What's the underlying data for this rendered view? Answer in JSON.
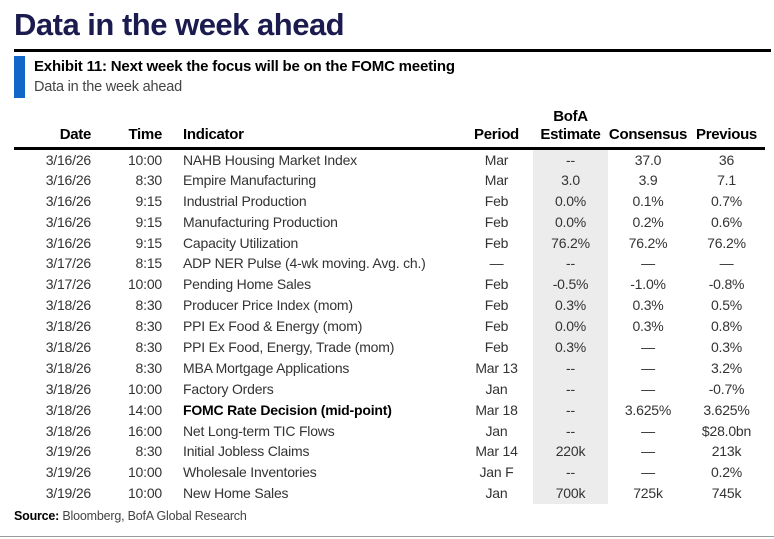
{
  "page_title": "Data in the week ahead",
  "exhibit": {
    "title": "Exhibit 11: Next week the focus will be on the FOMC meeting",
    "subtitle": "Data in the week ahead"
  },
  "table": {
    "headers": {
      "date": "Date",
      "time": "Time",
      "indicator": "Indicator",
      "period": "Period",
      "bofa_line1": "BofA",
      "bofa_line2": "Estimate",
      "consensus": "Consensus",
      "previous": "Previous"
    },
    "rows": [
      {
        "date": "3/16/26",
        "time": "10:00",
        "indicator": "NAHB Housing Market Index",
        "period": "Mar",
        "bofa": "--",
        "consensus": "37.0",
        "previous": "36",
        "emphasis": false
      },
      {
        "date": "3/16/26",
        "time": "8:30",
        "indicator": "Empire Manufacturing",
        "period": "Mar",
        "bofa": "3.0",
        "consensus": "3.9",
        "previous": "7.1",
        "emphasis": false
      },
      {
        "date": "3/16/26",
        "time": "9:15",
        "indicator": "Industrial Production",
        "period": "Feb",
        "bofa": "0.0%",
        "consensus": "0.1%",
        "previous": "0.7%",
        "emphasis": false
      },
      {
        "date": "3/16/26",
        "time": "9:15",
        "indicator": "Manufacturing Production",
        "period": "Feb",
        "bofa": "0.0%",
        "consensus": "0.2%",
        "previous": "0.6%",
        "emphasis": false
      },
      {
        "date": "3/16/26",
        "time": "9:15",
        "indicator": "Capacity Utilization",
        "period": "Feb",
        "bofa": "76.2%",
        "consensus": "76.2%",
        "previous": "76.2%",
        "emphasis": false
      },
      {
        "date": "3/17/26",
        "time": "8:15",
        "indicator": "ADP NER Pulse (4-wk moving. Avg. ch.)",
        "period": "—",
        "bofa": "--",
        "consensus": "—",
        "previous": "—",
        "emphasis": false
      },
      {
        "date": "3/17/26",
        "time": "10:00",
        "indicator": "Pending Home Sales",
        "period": "Feb",
        "bofa": "-0.5%",
        "consensus": "-1.0%",
        "previous": "-0.8%",
        "emphasis": false
      },
      {
        "date": "3/18/26",
        "time": "8:30",
        "indicator": "Producer Price Index (mom)",
        "period": "Feb",
        "bofa": "0.3%",
        "consensus": "0.3%",
        "previous": "0.5%",
        "emphasis": false
      },
      {
        "date": "3/18/26",
        "time": "8:30",
        "indicator": "PPI Ex Food & Energy (mom)",
        "period": "Feb",
        "bofa": "0.0%",
        "consensus": "0.3%",
        "previous": "0.8%",
        "emphasis": false
      },
      {
        "date": "3/18/26",
        "time": "8:30",
        "indicator": "PPI Ex Food, Energy, Trade (mom)",
        "period": "Feb",
        "bofa": "0.3%",
        "consensus": "—",
        "previous": "0.3%",
        "emphasis": false
      },
      {
        "date": "3/18/26",
        "time": "8:30",
        "indicator": "MBA Mortgage Applications",
        "period": "Mar 13",
        "bofa": "--",
        "consensus": "—",
        "previous": "3.2%",
        "emphasis": false
      },
      {
        "date": "3/18/26",
        "time": "10:00",
        "indicator": "Factory Orders",
        "period": "Jan",
        "bofa": "--",
        "consensus": "—",
        "previous": "-0.7%",
        "emphasis": false
      },
      {
        "date": "3/18/26",
        "time": "14:00",
        "indicator": "FOMC Rate Decision (mid-point)",
        "period": "Mar 18",
        "bofa": "--",
        "consensus": "3.625%",
        "previous": "3.625%",
        "emphasis": true
      },
      {
        "date": "3/18/26",
        "time": "16:00",
        "indicator": "Net Long-term TIC Flows",
        "period": "Jan",
        "bofa": "--",
        "consensus": "—",
        "previous": "$28.0bn",
        "emphasis": false
      },
      {
        "date": "3/19/26",
        "time": "8:30",
        "indicator": "Initial Jobless Claims",
        "period": "Mar 14",
        "bofa": "220k",
        "consensus": "—",
        "previous": "213k",
        "emphasis": false
      },
      {
        "date": "3/19/26",
        "time": "10:00",
        "indicator": "Wholesale Inventories",
        "period": "Jan F",
        "bofa": "--",
        "consensus": "—",
        "previous": "0.2%",
        "emphasis": false
      },
      {
        "date": "3/19/26",
        "time": "10:00",
        "indicator": "New Home Sales",
        "period": "Jan",
        "bofa": "700k",
        "consensus": "725k",
        "previous": "745k",
        "emphasis": false
      }
    ]
  },
  "footer": {
    "source_label": "Source:",
    "source_text": "Bloomberg, BofA Global Research"
  },
  "colors": {
    "title_navy": "#1b1b4f",
    "exhibit_bar_blue": "#1266c8",
    "estimate_band_gray": "#ececec",
    "rule_black": "#000000"
  }
}
